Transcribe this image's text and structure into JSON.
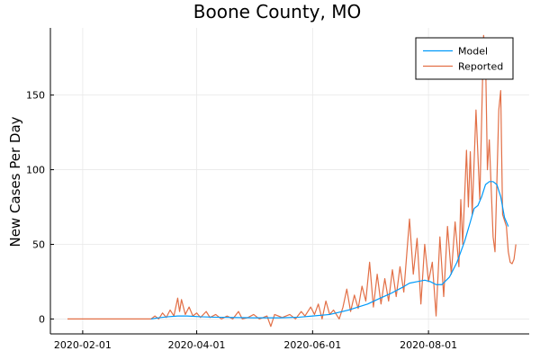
{
  "chart_data": {
    "type": "line",
    "title": "Boone County, MO",
    "xlabel": "",
    "ylabel": "New Cases Per Day",
    "x_start": "2020-01-24",
    "x_end": "2020-09-16",
    "xlim": [
      "2020-01-15",
      "2020-09-23"
    ],
    "ylim": [
      -10,
      195
    ],
    "xticks": [
      "2020-02-01",
      "2020-04-01",
      "2020-06-01",
      "2020-08-01"
    ],
    "yticks": [
      0,
      50,
      100,
      150
    ],
    "grid": true,
    "legend": {
      "placement": "top-right",
      "entries": [
        "Model",
        "Reported"
      ]
    },
    "series": [
      {
        "name": "Model",
        "color": "#009AFA",
        "points": [
          [
            "2020-03-08",
            0
          ],
          [
            "2020-03-12",
            0.8
          ],
          [
            "2020-03-17",
            1.5
          ],
          [
            "2020-03-22",
            2
          ],
          [
            "2020-03-27",
            2
          ],
          [
            "2020-04-03",
            1.5
          ],
          [
            "2020-04-10",
            1.2
          ],
          [
            "2020-04-20",
            1
          ],
          [
            "2020-05-01",
            0.8
          ],
          [
            "2020-05-15",
            0.8
          ],
          [
            "2020-05-25",
            1.2
          ],
          [
            "2020-06-01",
            2
          ],
          [
            "2020-06-10",
            3
          ],
          [
            "2020-06-20",
            6
          ],
          [
            "2020-06-30",
            10
          ],
          [
            "2020-07-05",
            13
          ],
          [
            "2020-07-12",
            17
          ],
          [
            "2020-07-18",
            21
          ],
          [
            "2020-07-22",
            24
          ],
          [
            "2020-07-26",
            25
          ],
          [
            "2020-07-30",
            26
          ],
          [
            "2020-08-02",
            25
          ],
          [
            "2020-08-05",
            23
          ],
          [
            "2020-08-08",
            23
          ],
          [
            "2020-08-12",
            28
          ],
          [
            "2020-08-16",
            38
          ],
          [
            "2020-08-20",
            52
          ],
          [
            "2020-08-23",
            65
          ],
          [
            "2020-08-25",
            74
          ],
          [
            "2020-08-27",
            76
          ],
          [
            "2020-08-29",
            82
          ],
          [
            "2020-08-31",
            90
          ],
          [
            "2020-09-02",
            92
          ],
          [
            "2020-09-04",
            92
          ],
          [
            "2020-09-06",
            90
          ],
          [
            "2020-09-08",
            82
          ],
          [
            "2020-09-10",
            68
          ],
          [
            "2020-09-12",
            62
          ]
        ]
      },
      {
        "name": "Reported",
        "color": "#E26F46",
        "points": [
          [
            "2020-01-24",
            0
          ],
          [
            "2020-03-08",
            0
          ],
          [
            "2020-03-10",
            2
          ],
          [
            "2020-03-12",
            0
          ],
          [
            "2020-03-14",
            4
          ],
          [
            "2020-03-16",
            1
          ],
          [
            "2020-03-18",
            6
          ],
          [
            "2020-03-20",
            2
          ],
          [
            "2020-03-22",
            14
          ],
          [
            "2020-03-23",
            5
          ],
          [
            "2020-03-24",
            13
          ],
          [
            "2020-03-26",
            3
          ],
          [
            "2020-03-28",
            8
          ],
          [
            "2020-03-30",
            2
          ],
          [
            "2020-04-01",
            4
          ],
          [
            "2020-04-03",
            1
          ],
          [
            "2020-04-06",
            5
          ],
          [
            "2020-04-08",
            1
          ],
          [
            "2020-04-11",
            3
          ],
          [
            "2020-04-14",
            0
          ],
          [
            "2020-04-17",
            2
          ],
          [
            "2020-04-20",
            0
          ],
          [
            "2020-04-23",
            5
          ],
          [
            "2020-04-25",
            0
          ],
          [
            "2020-04-28",
            1
          ],
          [
            "2020-05-01",
            3
          ],
          [
            "2020-05-04",
            0
          ],
          [
            "2020-05-08",
            2
          ],
          [
            "2020-05-10",
            -5
          ],
          [
            "2020-05-12",
            3
          ],
          [
            "2020-05-16",
            1
          ],
          [
            "2020-05-20",
            3
          ],
          [
            "2020-05-23",
            0
          ],
          [
            "2020-05-26",
            5
          ],
          [
            "2020-05-28",
            2
          ],
          [
            "2020-05-31",
            8
          ],
          [
            "2020-06-02",
            3
          ],
          [
            "2020-06-04",
            10
          ],
          [
            "2020-06-06",
            0
          ],
          [
            "2020-06-08",
            12
          ],
          [
            "2020-06-10",
            3
          ],
          [
            "2020-06-12",
            6
          ],
          [
            "2020-06-15",
            0
          ],
          [
            "2020-06-17",
            8
          ],
          [
            "2020-06-19",
            20
          ],
          [
            "2020-06-21",
            5
          ],
          [
            "2020-06-23",
            16
          ],
          [
            "2020-06-25",
            7
          ],
          [
            "2020-06-27",
            22
          ],
          [
            "2020-06-29",
            12
          ],
          [
            "2020-07-01",
            38
          ],
          [
            "2020-07-03",
            8
          ],
          [
            "2020-07-05",
            30
          ],
          [
            "2020-07-07",
            10
          ],
          [
            "2020-07-09",
            27
          ],
          [
            "2020-07-11",
            12
          ],
          [
            "2020-07-13",
            33
          ],
          [
            "2020-07-15",
            15
          ],
          [
            "2020-07-17",
            35
          ],
          [
            "2020-07-19",
            18
          ],
          [
            "2020-07-22",
            67
          ],
          [
            "2020-07-24",
            30
          ],
          [
            "2020-07-26",
            54
          ],
          [
            "2020-07-28",
            10
          ],
          [
            "2020-07-30",
            50
          ],
          [
            "2020-08-01",
            25
          ],
          [
            "2020-08-03",
            38
          ],
          [
            "2020-08-05",
            2
          ],
          [
            "2020-08-07",
            55
          ],
          [
            "2020-08-09",
            15
          ],
          [
            "2020-08-11",
            62
          ],
          [
            "2020-08-13",
            30
          ],
          [
            "2020-08-15",
            65
          ],
          [
            "2020-08-17",
            35
          ],
          [
            "2020-08-18",
            80
          ],
          [
            "2020-08-19",
            50
          ],
          [
            "2020-08-21",
            113
          ],
          [
            "2020-08-22",
            75
          ],
          [
            "2020-08-23",
            112
          ],
          [
            "2020-08-24",
            70
          ],
          [
            "2020-08-26",
            140
          ],
          [
            "2020-08-28",
            80
          ],
          [
            "2020-08-30",
            190
          ],
          [
            "2020-08-31",
            178
          ],
          [
            "2020-09-01",
            100
          ],
          [
            "2020-09-02",
            120
          ],
          [
            "2020-09-04",
            55
          ],
          [
            "2020-09-05",
            45
          ],
          [
            "2020-09-07",
            140
          ],
          [
            "2020-09-08",
            153
          ],
          [
            "2020-09-09",
            70
          ],
          [
            "2020-09-11",
            62
          ],
          [
            "2020-09-12",
            45
          ],
          [
            "2020-09-13",
            38
          ],
          [
            "2020-09-14",
            37
          ],
          [
            "2020-09-15",
            40
          ],
          [
            "2020-09-16",
            50
          ]
        ]
      }
    ]
  }
}
